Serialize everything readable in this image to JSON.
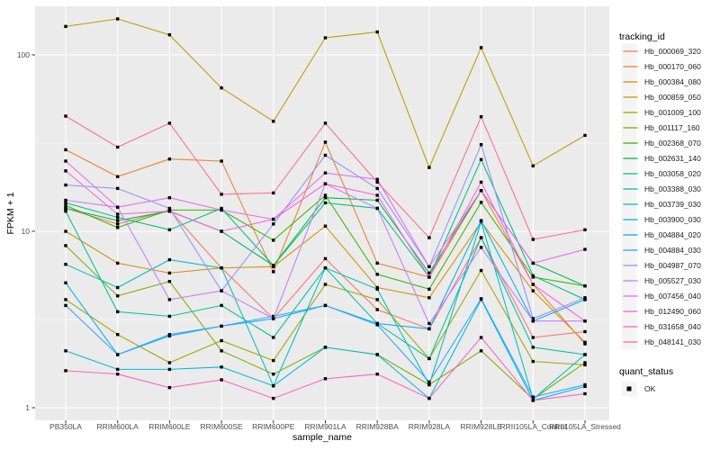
{
  "figure": {
    "type_note": "ggplot-style multi-series line chart"
  },
  "colors": {
    "panel_bg": "#EBEBEB",
    "grid": "#FFFFFF",
    "axis_text": "#4D4D4D",
    "title_text": "#000000",
    "point": "#000000",
    "legend_key_bg": "#F4F4F4"
  },
  "chart_data": {
    "type": "line",
    "title": "",
    "xlabel": "sample_name",
    "ylabel": "FPKM + 1",
    "y_scale": "log10",
    "ylim": [
      0.9,
      190
    ],
    "y_ticks": [
      100,
      10,
      1
    ],
    "y_tick_labels": [
      "100",
      "10",
      "1"
    ],
    "y_minor_ticks": [
      31.62,
      3.162
    ],
    "grid": "white major+minor on gray panel",
    "legend_position": "right",
    "legend_title": "tracking_id",
    "quant_legend": {
      "title": "quant_status",
      "items": [
        {
          "label": "OK",
          "marker": "black-square"
        }
      ]
    },
    "x_categories": [
      "PB350LA",
      "RRIM600LA",
      "RRIM600LE",
      "RRIM600SE",
      "RRIM600PE",
      "RRIM901LA",
      "RRIM928BA",
      "RRIM928LA",
      "RRIM928LE",
      "RRII105LA_Control",
      "RRII105LA_Stressed"
    ],
    "series": [
      {
        "name": "Hb_000069_320",
        "color": "#F8766D",
        "values": [
          13.5,
          11.0,
          13.2,
          6.2,
          3.2,
          7.0,
          3.6,
          2.8,
          9.2,
          2.5,
          2.7
        ]
      },
      {
        "name": "Hb_000170_060",
        "color": "#EA8331",
        "values": [
          29,
          20.4,
          25.7,
          25,
          5.9,
          32,
          6.6,
          5.5,
          17,
          5.0,
          2.3
        ]
      },
      {
        "name": "Hb_000384_080",
        "color": "#D89000",
        "values": [
          10,
          6.6,
          5.8,
          6.2,
          6.3,
          10.7,
          4.8,
          4.2,
          11.3,
          4.6,
          2.35
        ]
      },
      {
        "name": "Hb_000859_050",
        "color": "#C09B00",
        "values": [
          145,
          160,
          130,
          65,
          42,
          125,
          135,
          23,
          110,
          23.5,
          35
        ]
      },
      {
        "name": "Hb_001009_100",
        "color": "#A3A500",
        "values": [
          4.1,
          2.6,
          1.8,
          2.4,
          1.85,
          5.0,
          4.1,
          1.9,
          6.0,
          1.83,
          1.75
        ]
      },
      {
        "name": "Hb_001117_160",
        "color": "#7CAE00",
        "values": [
          8.3,
          4.3,
          5.2,
          2.1,
          1.55,
          2.2,
          2.0,
          1.35,
          2.1,
          1.12,
          1.8
        ]
      },
      {
        "name": "Hb_002368_070",
        "color": "#39B600",
        "values": [
          14.0,
          10.5,
          13.2,
          13.2,
          8.9,
          16,
          5.7,
          4.7,
          14.6,
          5.5,
          4.9
        ]
      },
      {
        "name": "Hb_002631_140",
        "color": "#00BB4E",
        "values": [
          13.5,
          11.5,
          13.0,
          10,
          6.4,
          15.5,
          15,
          5.8,
          17,
          6.6,
          4.9
        ]
      },
      {
        "name": "Hb_003058_020",
        "color": "#00BF7D",
        "values": [
          14.5,
          12,
          10.2,
          13.5,
          6.4,
          14.5,
          13.5,
          5.5,
          25.5,
          5.6,
          4.1
        ]
      },
      {
        "name": "Hb_003388_030",
        "color": "#00C1A3",
        "values": [
          13,
          3.5,
          3.3,
          3.8,
          2.5,
          6.2,
          3.0,
          1.9,
          9.2,
          2.2,
          2.0
        ]
      },
      {
        "name": "Hb_003739_030",
        "color": "#00BFC4",
        "values": [
          6.5,
          4.8,
          6.9,
          6.2,
          1.33,
          6.2,
          4.7,
          1.35,
          11.3,
          1.12,
          2.0
        ]
      },
      {
        "name": "Hb_003900_030",
        "color": "#00BAE0",
        "values": [
          2.1,
          1.65,
          1.65,
          1.7,
          1.33,
          2.2,
          2.0,
          1.13,
          4.1,
          1.1,
          1.32
        ]
      },
      {
        "name": "Hb_004884_020",
        "color": "#00B0F6",
        "values": [
          5.1,
          2.0,
          2.6,
          2.9,
          3.2,
          3.8,
          3.0,
          2.8,
          11.5,
          3.1,
          4.1
        ]
      },
      {
        "name": "Hb_004884_030",
        "color": "#35A2FF",
        "values": [
          3.8,
          2.0,
          2.55,
          2.9,
          3.3,
          3.8,
          2.95,
          1.4,
          4.15,
          1.15,
          1.35
        ]
      },
      {
        "name": "Hb_004987_070",
        "color": "#9590FF",
        "values": [
          18.3,
          17.5,
          13.5,
          4.6,
          11,
          27,
          17.5,
          6.3,
          31,
          3.2,
          4.2
        ]
      },
      {
        "name": "Hb_005527_030",
        "color": "#C77CFF",
        "values": [
          15,
          13.7,
          4.1,
          4.6,
          3.2,
          18.6,
          13.5,
          3.0,
          8.1,
          3.1,
          3.1
        ]
      },
      {
        "name": "Hb_007456_040",
        "color": "#E76BF3",
        "values": [
          25,
          13.7,
          15.5,
          13.2,
          11.7,
          21.4,
          19.7,
          6.3,
          17,
          6.6,
          7.9
        ]
      },
      {
        "name": "Hb_012490_060",
        "color": "#FA62DB",
        "values": [
          22,
          12.5,
          13.0,
          10,
          11.7,
          18.6,
          16,
          5.5,
          19,
          5.0,
          3.1
        ]
      },
      {
        "name": "Hb_031658_040",
        "color": "#FF62BC",
        "values": [
          1.62,
          1.55,
          1.3,
          1.44,
          1.13,
          1.46,
          1.55,
          1.13,
          2.5,
          1.1,
          1.2
        ]
      },
      {
        "name": "Hb_048141_030",
        "color": "#FF6A98",
        "values": [
          45,
          30,
          41,
          16.2,
          16.5,
          41,
          19,
          9.2,
          44.6,
          9.0,
          10.2
        ]
      }
    ]
  }
}
